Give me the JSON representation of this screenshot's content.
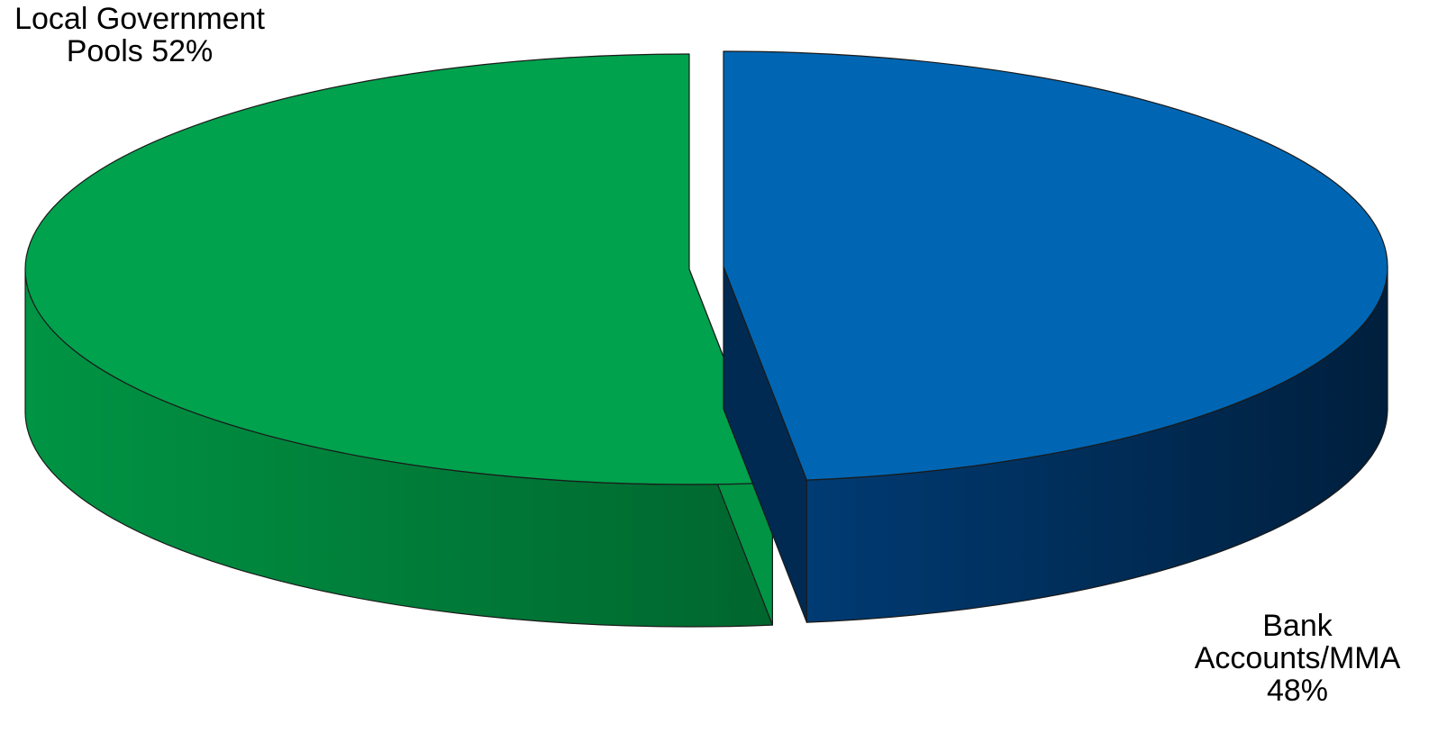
{
  "chart_data": {
    "type": "pie",
    "title": "",
    "series": [
      {
        "label_lines": [
          "Local Government",
          "Pools  52%"
        ],
        "value": 52,
        "color_top": "#00a24d",
        "color_side_light": "#009444",
        "color_side_dark": "#00662e",
        "color_cut": "#009444"
      },
      {
        "label_lines": [
          "Bank",
          "Accounts/MMA",
          "48%"
        ],
        "value": 48,
        "color_top": "#0066b3",
        "color_side_light": "#003b73",
        "color_side_dark": "#001f3d",
        "color_cut": "#002a52"
      }
    ],
    "style": "3d-exploded",
    "legend": "none"
  }
}
